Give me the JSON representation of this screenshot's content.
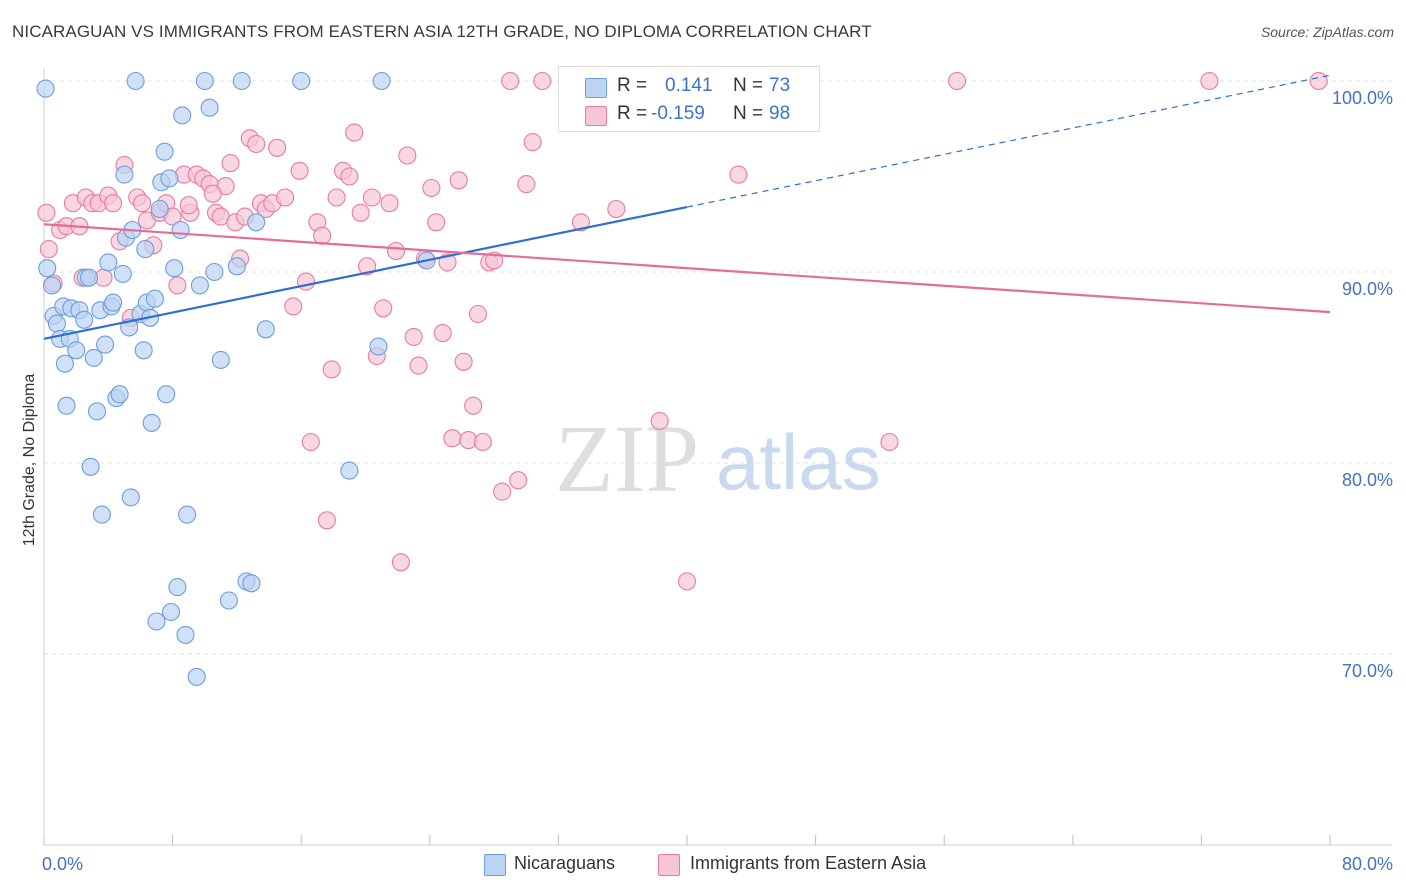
{
  "title": "NICARAGUAN VS IMMIGRANTS FROM EASTERN ASIA 12TH GRADE, NO DIPLOMA CORRELATION CHART",
  "source": "Source: ZipAtlas.com",
  "watermark": {
    "zip": "ZIP",
    "atlas": "atlas"
  },
  "stats": {
    "r_label": "R =",
    "n_label": "N =",
    "rows": [
      {
        "r": "0.141",
        "n": "73",
        "color": "#6b9ee0"
      },
      {
        "r": "-0.159",
        "n": "98",
        "color": "#e97aa0"
      }
    ]
  },
  "legend": [
    "Nicaraguans",
    "Immigrants from Eastern Asia"
  ],
  "chart_data": {
    "type": "scatter",
    "ylabel": "12th Grade, No Diploma",
    "xlim": [
      0,
      80
    ],
    "ylim": [
      60,
      100
    ],
    "x_tick_labels": [
      "0.0%",
      "80.0%"
    ],
    "y_tick_labels": [
      "100.0%",
      "90.0%",
      "80.0%",
      "70.0%"
    ],
    "y_ticks": [
      100,
      90,
      80,
      70
    ],
    "grid": true,
    "colors": {
      "blue_fill": "#bcd3f2",
      "blue_stroke": "#6b9ee0",
      "blue_line": "#2e6fd0",
      "pink_fill": "#f7c6d5",
      "pink_stroke": "#e97aa0",
      "pink_line": "#e36d96",
      "axis_text": "#4472c4"
    },
    "series": [
      {
        "name": "Nicaraguans",
        "trend": {
          "x": [
            0,
            40
          ],
          "y": [
            86.5,
            93.4
          ],
          "dashed_to": [
            80,
            100.3
          ]
        },
        "points": [
          [
            0.2,
            90.2
          ],
          [
            0.5,
            89.3
          ],
          [
            0.6,
            87.7
          ],
          [
            0.8,
            87.3
          ],
          [
            1.0,
            86.5
          ],
          [
            1.2,
            88.2
          ],
          [
            1.3,
            85.2
          ],
          [
            1.4,
            83.0
          ],
          [
            1.6,
            86.5
          ],
          [
            1.7,
            88.1
          ],
          [
            2.0,
            85.9
          ],
          [
            2.2,
            88.0
          ],
          [
            2.5,
            87.5
          ],
          [
            2.6,
            89.7
          ],
          [
            2.8,
            89.7
          ],
          [
            2.9,
            79.8
          ],
          [
            3.1,
            85.5
          ],
          [
            3.3,
            82.7
          ],
          [
            3.5,
            88.0
          ],
          [
            3.6,
            77.3
          ],
          [
            3.8,
            86.2
          ],
          [
            4.0,
            90.5
          ],
          [
            4.2,
            88.2
          ],
          [
            4.3,
            88.4
          ],
          [
            4.5,
            83.4
          ],
          [
            4.7,
            83.6
          ],
          [
            4.9,
            89.9
          ],
          [
            5.0,
            95.1
          ],
          [
            5.1,
            91.8
          ],
          [
            5.3,
            87.1
          ],
          [
            5.4,
            78.2
          ],
          [
            5.5,
            92.2
          ],
          [
            5.7,
            100
          ],
          [
            6.0,
            87.8
          ],
          [
            6.2,
            85.9
          ],
          [
            6.3,
            91.2
          ],
          [
            6.4,
            88.4
          ],
          [
            6.6,
            87.6
          ],
          [
            6.7,
            82.1
          ],
          [
            6.9,
            88.6
          ],
          [
            7.0,
            71.7
          ],
          [
            7.2,
            93.3
          ],
          [
            7.3,
            94.7
          ],
          [
            7.5,
            96.3
          ],
          [
            7.6,
            83.6
          ],
          [
            7.8,
            94.9
          ],
          [
            7.9,
            72.2
          ],
          [
            8.1,
            90.2
          ],
          [
            8.3,
            73.5
          ],
          [
            8.5,
            92.2
          ],
          [
            8.6,
            98.2
          ],
          [
            8.8,
            71.0
          ],
          [
            8.9,
            77.3
          ],
          [
            9.5,
            68.8
          ],
          [
            9.7,
            89.3
          ],
          [
            10.0,
            100
          ],
          [
            10.3,
            98.6
          ],
          [
            10.6,
            90.0
          ],
          [
            11.0,
            85.4
          ],
          [
            11.5,
            72.8
          ],
          [
            12.0,
            90.3
          ],
          [
            12.3,
            100
          ],
          [
            12.6,
            73.8
          ],
          [
            12.9,
            73.7
          ],
          [
            13.2,
            92.6
          ],
          [
            13.8,
            87.0
          ],
          [
            16.0,
            100
          ],
          [
            19.0,
            79.6
          ],
          [
            20.8,
            86.1
          ],
          [
            21.0,
            100
          ],
          [
            23.8,
            90.6
          ],
          [
            33.0,
            98.5
          ],
          [
            0.1,
            99.6
          ]
        ]
      },
      {
        "name": "Immigrants from Eastern Asia",
        "trend": {
          "x": [
            0,
            80
          ],
          "y": [
            92.5,
            87.9
          ]
        },
        "points": [
          [
            0.3,
            91.2
          ],
          [
            0.6,
            89.4
          ],
          [
            1.0,
            92.2
          ],
          [
            1.4,
            92.4
          ],
          [
            1.8,
            93.6
          ],
          [
            2.2,
            92.4
          ],
          [
            2.6,
            93.9
          ],
          [
            3.0,
            93.6
          ],
          [
            3.4,
            93.6
          ],
          [
            3.7,
            89.7
          ],
          [
            4.0,
            94.0
          ],
          [
            4.3,
            93.6
          ],
          [
            4.7,
            91.6
          ],
          [
            5.0,
            95.6
          ],
          [
            5.4,
            87.6
          ],
          [
            5.8,
            93.9
          ],
          [
            6.1,
            93.6
          ],
          [
            6.4,
            92.7
          ],
          [
            6.8,
            91.4
          ],
          [
            7.2,
            93.1
          ],
          [
            7.6,
            93.6
          ],
          [
            8.0,
            92.9
          ],
          [
            8.3,
            89.3
          ],
          [
            8.7,
            95.1
          ],
          [
            9.1,
            93.1
          ],
          [
            9.5,
            95.1
          ],
          [
            9.9,
            94.9
          ],
          [
            10.3,
            94.6
          ],
          [
            10.7,
            93.1
          ],
          [
            11.0,
            92.9
          ],
          [
            11.3,
            94.5
          ],
          [
            11.6,
            95.7
          ],
          [
            11.9,
            92.6
          ],
          [
            12.2,
            90.7
          ],
          [
            12.5,
            92.9
          ],
          [
            12.8,
            97.0
          ],
          [
            13.2,
            96.7
          ],
          [
            13.5,
            93.6
          ],
          [
            13.8,
            93.3
          ],
          [
            14.2,
            93.6
          ],
          [
            14.5,
            96.5
          ],
          [
            15.0,
            93.9
          ],
          [
            15.5,
            88.2
          ],
          [
            15.9,
            95.3
          ],
          [
            16.3,
            89.5
          ],
          [
            16.6,
            81.1
          ],
          [
            17.0,
            92.6
          ],
          [
            17.3,
            91.9
          ],
          [
            17.6,
            77.0
          ],
          [
            17.9,
            84.9
          ],
          [
            18.2,
            93.9
          ],
          [
            18.6,
            95.3
          ],
          [
            19.0,
            95.0
          ],
          [
            19.3,
            97.3
          ],
          [
            19.7,
            93.1
          ],
          [
            20.1,
            90.3
          ],
          [
            20.4,
            93.9
          ],
          [
            20.7,
            85.6
          ],
          [
            21.1,
            88.1
          ],
          [
            21.5,
            93.6
          ],
          [
            21.9,
            91.1
          ],
          [
            22.2,
            74.8
          ],
          [
            22.6,
            96.1
          ],
          [
            23.0,
            86.6
          ],
          [
            23.3,
            85.1
          ],
          [
            23.7,
            90.7
          ],
          [
            24.1,
            94.4
          ],
          [
            24.4,
            92.6
          ],
          [
            24.8,
            86.8
          ],
          [
            25.1,
            90.5
          ],
          [
            25.4,
            81.3
          ],
          [
            25.8,
            94.8
          ],
          [
            26.1,
            85.3
          ],
          [
            26.4,
            81.2
          ],
          [
            26.7,
            83.0
          ],
          [
            27.0,
            87.8
          ],
          [
            27.3,
            81.1
          ],
          [
            27.7,
            90.5
          ],
          [
            28.0,
            90.6
          ],
          [
            28.5,
            78.5
          ],
          [
            29.0,
            100
          ],
          [
            29.5,
            79.1
          ],
          [
            30.0,
            94.6
          ],
          [
            30.4,
            96.8
          ],
          [
            31.0,
            100
          ],
          [
            33.4,
            92.6
          ],
          [
            35.6,
            93.3
          ],
          [
            38.3,
            82.2
          ],
          [
            40.0,
            73.8
          ],
          [
            43.2,
            95.1
          ],
          [
            52.6,
            81.1
          ],
          [
            56.8,
            100
          ],
          [
            72.5,
            100
          ],
          [
            79.3,
            100
          ],
          [
            0.15,
            93.1
          ],
          [
            2.4,
            89.7
          ],
          [
            10.5,
            94.1
          ],
          [
            9.0,
            93.5
          ]
        ]
      }
    ]
  }
}
